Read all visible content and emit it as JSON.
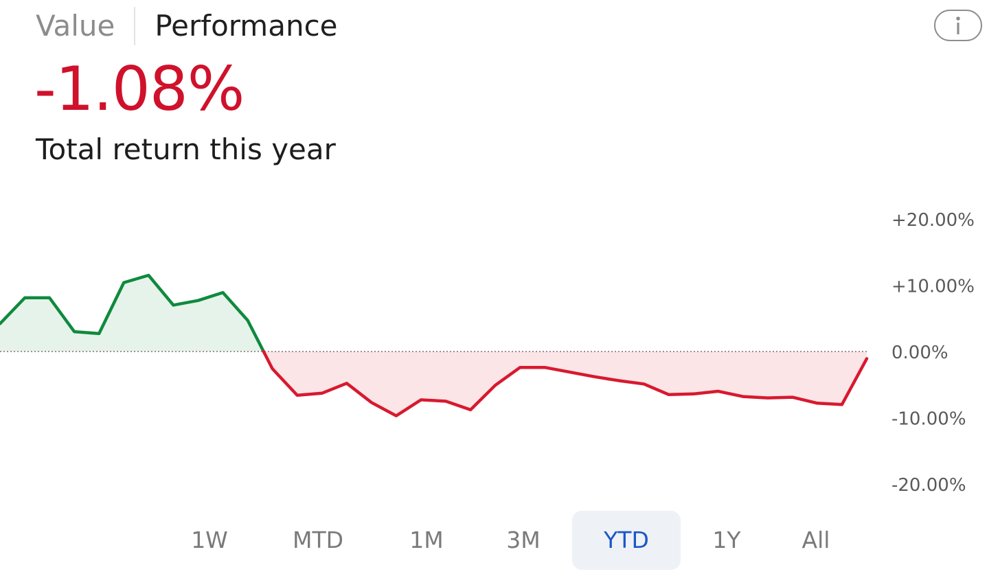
{
  "tabs": [
    {
      "label": "Value",
      "active": false
    },
    {
      "label": "Performance",
      "active": true
    }
  ],
  "info_icon": "info-icon",
  "summary": {
    "value": "-1.08%",
    "label": "Total return this year",
    "value_color": "#d0112b"
  },
  "colors": {
    "positive": "#0f8a3e",
    "negative": "#d8192f",
    "positive_fill": "#e6f3ea",
    "negative_fill": "#fbe5e7",
    "selected_text": "#1a57c9"
  },
  "chart_data": {
    "type": "area",
    "baseline": 0,
    "ylim": [
      -20,
      20
    ],
    "y_ticks": [
      {
        "value": 20,
        "label": "+20.00%"
      },
      {
        "value": 10,
        "label": "+10.00%"
      },
      {
        "value": 0,
        "label": "0.00%"
      },
      {
        "value": -10,
        "label": "-10.00%"
      },
      {
        "value": -20,
        "label": "-20.00%"
      }
    ],
    "x": [
      0,
      1,
      2,
      3,
      4,
      5,
      6,
      7,
      8,
      9,
      10,
      11,
      12,
      13,
      14,
      15,
      16,
      17,
      18,
      19,
      20,
      21,
      22,
      23,
      24,
      25,
      26,
      27,
      28,
      29,
      30,
      31,
      32,
      33,
      34
    ],
    "values": [
      4.2,
      8.1,
      8.1,
      3.0,
      2.7,
      10.4,
      11.5,
      7.0,
      7.7,
      8.9,
      4.7,
      -2.6,
      -6.6,
      -6.3,
      -4.8,
      -7.7,
      -9.7,
      -7.3,
      -7.5,
      -8.8,
      -5.1,
      -2.4,
      -2.4,
      -3.1,
      -3.8,
      -4.4,
      -4.9,
      -6.5,
      -6.4,
      -6.0,
      -6.8,
      -7.0,
      -6.9,
      -7.8,
      -8.0
    ],
    "x_end": 35,
    "end_value": -1.08,
    "baseline_style": "dotted"
  },
  "ranges": [
    {
      "label": "1W",
      "selected": false
    },
    {
      "label": "MTD",
      "selected": false
    },
    {
      "label": "1M",
      "selected": false
    },
    {
      "label": "3M",
      "selected": false
    },
    {
      "label": "YTD",
      "selected": true
    },
    {
      "label": "1Y",
      "selected": false
    },
    {
      "label": "All",
      "selected": false
    }
  ]
}
